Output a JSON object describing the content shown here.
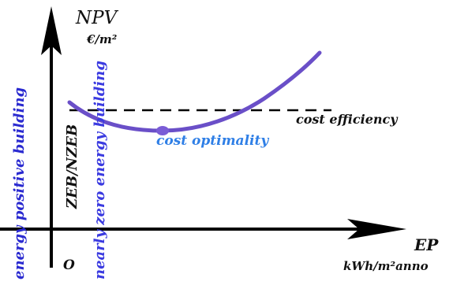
{
  "y_axis": {
    "label": "NPV",
    "unit": "€/m²"
  },
  "x_axis": {
    "label": "EP",
    "unit": "kWh/m²anno"
  },
  "origin_label": "O",
  "vertical_labels": {
    "energy_positive": "energy positive building",
    "zeb": "ZEB/NZEB",
    "nearly_zero": "nearly zero energy building"
  },
  "annotations": {
    "cost_efficiency": "cost efficiency",
    "cost_optimality": "cost optimality"
  },
  "colors": {
    "axis": "#000000",
    "curve": "#6a4fc8",
    "optimum_point": "#7a5cd6",
    "energy_positive_text": "#2a2ad0",
    "nearly_zero_text": "#3a3ae0",
    "cost_optimality_text": "#2f7fe6",
    "text_dark": "#111111"
  }
}
